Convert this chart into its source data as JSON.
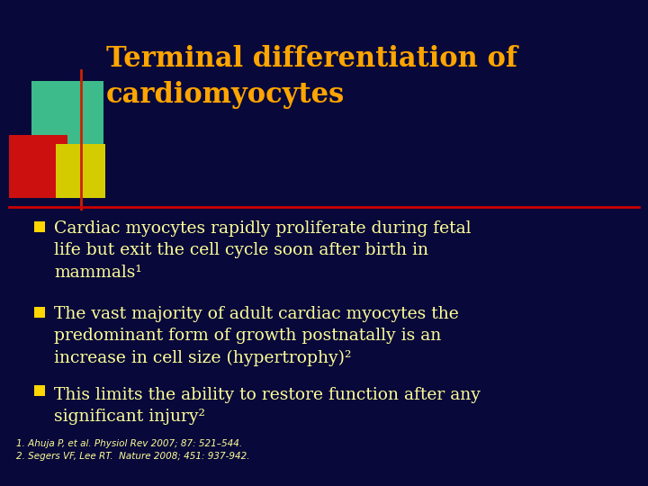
{
  "background_color": "#08083a",
  "title_line1": "Terminal differentiation of",
  "title_line2": "cardiomyocytes",
  "title_color": "#FFA500",
  "title_fontsize": 22,
  "title_font": "serif",
  "divider_color": "#cc0000",
  "bullet_color": "#FFFF99",
  "bullet_marker_color": "#FFD700",
  "bullet_points": [
    "Cardiac myocytes rapidly proliferate during fetal\nlife but exit the cell cycle soon after birth in\nmammals¹",
    "The vast majority of adult cardiac myocytes the\npredominant form of growth postnatally is an\nincrease in cell size (hypertrophy)²",
    "This limits the ability to restore function after any\nsignificant injury²"
  ],
  "bullet_fontsize": 13.5,
  "footnote_text": "1. Ahuja P, et al. Physiol Rev 2007; 87: 521–544.\n2. Segers VF, Lee RT.  Nature 2008; 451: 937-942.",
  "footnote_fontsize": 7.5,
  "footnote_color": "#FFFF99",
  "logo_green": "#3dbb8a",
  "logo_red": "#cc1010",
  "logo_yellow": "#d4cc00",
  "logo_line_color": "#cc2200"
}
